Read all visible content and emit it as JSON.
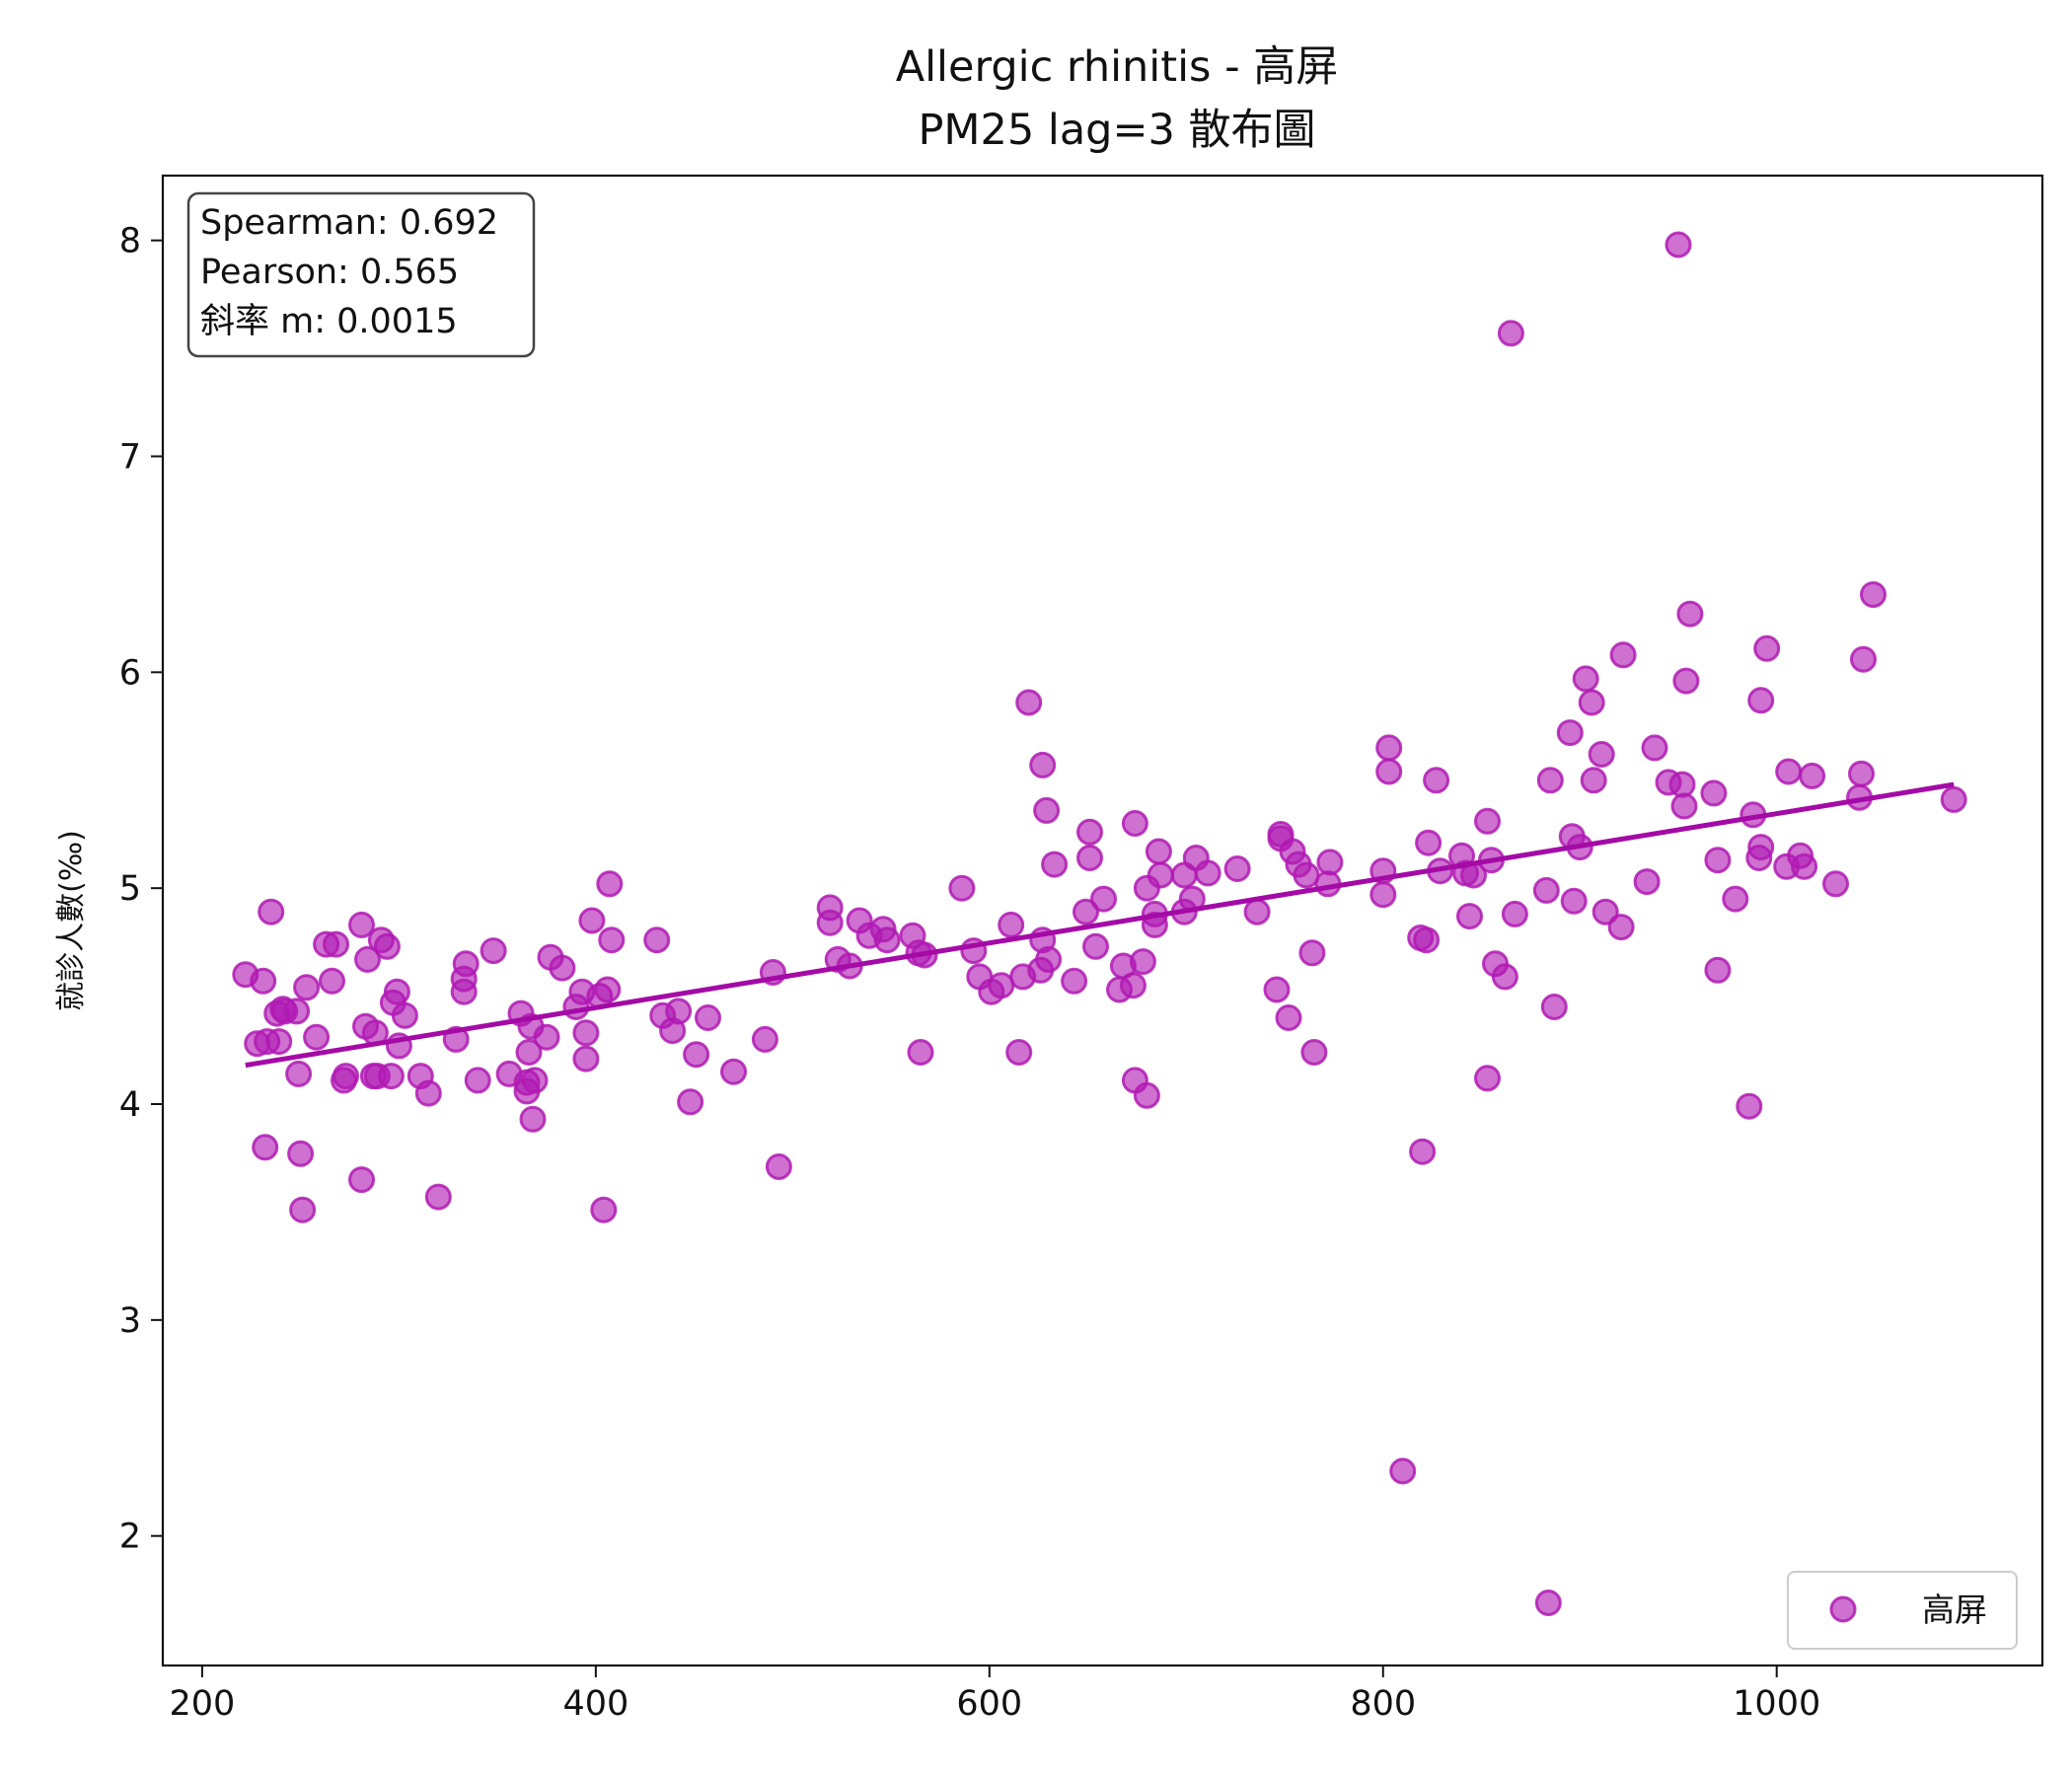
{
  "chart_data": {
    "type": "scatter",
    "title_line1": "Allergic rhinitis - 高屏",
    "title_line2": "PM25 lag=3 散布圖",
    "xlabel": "",
    "ylabel": "就診人數(‰)",
    "xlim": [
      180,
      1135
    ],
    "ylim": [
      1.4,
      8.3
    ],
    "xticks": [
      200,
      400,
      600,
      800,
      1000
    ],
    "yticks": [
      2,
      3,
      4,
      5,
      6,
      7,
      8
    ],
    "grid": false,
    "legend_position": "bottom-right",
    "colors": {
      "points": "#b01ab3",
      "trendline": "#a40aa6"
    },
    "stats": {
      "spearman": "Spearman: 0.692",
      "pearson": "Pearson: 0.565",
      "slope": "斜率 m: 0.0015"
    },
    "trendline": {
      "x": [
        222,
        1090
      ],
      "y": [
        4.18,
        5.48
      ]
    },
    "series": [
      {
        "name": "高屏",
        "points": [
          [
            222,
            4.6
          ],
          [
            228,
            4.28
          ],
          [
            231,
            4.57
          ],
          [
            232,
            3.8
          ],
          [
            233,
            4.29
          ],
          [
            235,
            4.89
          ],
          [
            238,
            4.42
          ],
          [
            239,
            4.29
          ],
          [
            241,
            4.44
          ],
          [
            242,
            4.43
          ],
          [
            248,
            4.43
          ],
          [
            249,
            4.14
          ],
          [
            250,
            3.77
          ],
          [
            251,
            3.51
          ],
          [
            253,
            4.54
          ],
          [
            258,
            4.31
          ],
          [
            263,
            4.74
          ],
          [
            266,
            4.57
          ],
          [
            268,
            4.74
          ],
          [
            272,
            4.11
          ],
          [
            273,
            4.13
          ],
          [
            281,
            4.83
          ],
          [
            281,
            3.65
          ],
          [
            283,
            4.36
          ],
          [
            284,
            4.67
          ],
          [
            287,
            4.13
          ],
          [
            288,
            4.33
          ],
          [
            289,
            4.13
          ],
          [
            291,
            4.76
          ],
          [
            294,
            4.73
          ],
          [
            296,
            4.13
          ],
          [
            297,
            4.47
          ],
          [
            299,
            4.52
          ],
          [
            300,
            4.27
          ],
          [
            303,
            4.41
          ],
          [
            311,
            4.13
          ],
          [
            315,
            4.05
          ],
          [
            320,
            3.57
          ],
          [
            329,
            4.3
          ],
          [
            333,
            4.52
          ],
          [
            333,
            4.58
          ],
          [
            334,
            4.65
          ],
          [
            340,
            4.11
          ],
          [
            348,
            4.71
          ],
          [
            356,
            4.14
          ],
          [
            362,
            4.42
          ],
          [
            365,
            4.06
          ],
          [
            365,
            4.1
          ],
          [
            366,
            4.24
          ],
          [
            367,
            4.36
          ],
          [
            368,
            3.93
          ],
          [
            369,
            4.11
          ],
          [
            375,
            4.31
          ],
          [
            377,
            4.68
          ],
          [
            383,
            4.63
          ],
          [
            390,
            4.45
          ],
          [
            393,
            4.52
          ],
          [
            395,
            4.21
          ],
          [
            395,
            4.33
          ],
          [
            398,
            4.85
          ],
          [
            402,
            4.5
          ],
          [
            404,
            3.51
          ],
          [
            406,
            4.53
          ],
          [
            407,
            5.02
          ],
          [
            408,
            4.76
          ],
          [
            431,
            4.76
          ],
          [
            434,
            4.41
          ],
          [
            439,
            4.34
          ],
          [
            442,
            4.43
          ],
          [
            448,
            4.01
          ],
          [
            451,
            4.23
          ],
          [
            457,
            4.4
          ],
          [
            470,
            4.15
          ],
          [
            486,
            4.3
          ],
          [
            490,
            4.61
          ],
          [
            493,
            3.71
          ],
          [
            519,
            4.91
          ],
          [
            519,
            4.84
          ],
          [
            523,
            4.67
          ],
          [
            529,
            4.64
          ],
          [
            534,
            4.85
          ],
          [
            539,
            4.78
          ],
          [
            546,
            4.81
          ],
          [
            548,
            4.76
          ],
          [
            561,
            4.78
          ],
          [
            564,
            4.7
          ],
          [
            565,
            4.24
          ],
          [
            567,
            4.69
          ],
          [
            586,
            5.0
          ],
          [
            592,
            4.71
          ],
          [
            595,
            4.59
          ],
          [
            601,
            4.52
          ],
          [
            606,
            4.55
          ],
          [
            611,
            4.83
          ],
          [
            615,
            4.24
          ],
          [
            617,
            4.59
          ],
          [
            620,
            5.86
          ],
          [
            626,
            4.62
          ],
          [
            627,
            5.57
          ],
          [
            627,
            4.76
          ],
          [
            629,
            5.36
          ],
          [
            630,
            4.67
          ],
          [
            633,
            5.11
          ],
          [
            643,
            4.57
          ],
          [
            649,
            4.89
          ],
          [
            651,
            5.14
          ],
          [
            651,
            5.26
          ],
          [
            654,
            4.73
          ],
          [
            658,
            4.95
          ],
          [
            666,
            4.53
          ],
          [
            668,
            4.64
          ],
          [
            673,
            4.55
          ],
          [
            674,
            5.3
          ],
          [
            674,
            4.11
          ],
          [
            678,
            4.66
          ],
          [
            680,
            5.0
          ],
          [
            680,
            4.04
          ],
          [
            684,
            4.88
          ],
          [
            684,
            4.83
          ],
          [
            686,
            5.17
          ],
          [
            687,
            5.06
          ],
          [
            699,
            5.06
          ],
          [
            699,
            4.89
          ],
          [
            703,
            4.95
          ],
          [
            705,
            5.14
          ],
          [
            711,
            5.07
          ],
          [
            726,
            5.09
          ],
          [
            736,
            4.89
          ],
          [
            746,
            4.53
          ],
          [
            748,
            5.25
          ],
          [
            748,
            5.23
          ],
          [
            752,
            4.4
          ],
          [
            754,
            5.17
          ],
          [
            757,
            5.11
          ],
          [
            761,
            5.06
          ],
          [
            764,
            4.7
          ],
          [
            765,
            4.24
          ],
          [
            772,
            5.02
          ],
          [
            773,
            5.12
          ],
          [
            800,
            5.08
          ],
          [
            800,
            4.97
          ],
          [
            803,
            5.65
          ],
          [
            803,
            5.54
          ],
          [
            810,
            2.3
          ],
          [
            819,
            4.77
          ],
          [
            820,
            3.78
          ],
          [
            822,
            4.76
          ],
          [
            823,
            5.21
          ],
          [
            827,
            5.5
          ],
          [
            829,
            5.08
          ],
          [
            840,
            5.15
          ],
          [
            842,
            5.07
          ],
          [
            844,
            4.87
          ],
          [
            846,
            5.06
          ],
          [
            853,
            5.31
          ],
          [
            853,
            4.12
          ],
          [
            855,
            5.13
          ],
          [
            857,
            4.65
          ],
          [
            862,
            4.59
          ],
          [
            865,
            7.57
          ],
          [
            867,
            4.88
          ],
          [
            883,
            4.99
          ],
          [
            884,
            1.69
          ],
          [
            885,
            5.5
          ],
          [
            887,
            4.45
          ],
          [
            895,
            5.72
          ],
          [
            896,
            5.24
          ],
          [
            897,
            4.94
          ],
          [
            900,
            5.19
          ],
          [
            903,
            5.97
          ],
          [
            906,
            5.86
          ],
          [
            907,
            5.5
          ],
          [
            911,
            5.62
          ],
          [
            913,
            4.89
          ],
          [
            921,
            4.82
          ],
          [
            922,
            6.08
          ],
          [
            934,
            5.03
          ],
          [
            938,
            5.65
          ],
          [
            945,
            5.49
          ],
          [
            950,
            7.98
          ],
          [
            952,
            5.48
          ],
          [
            953,
            5.38
          ],
          [
            954,
            5.96
          ],
          [
            956,
            6.27
          ],
          [
            968,
            5.44
          ],
          [
            970,
            4.62
          ],
          [
            970,
            5.13
          ],
          [
            979,
            4.95
          ],
          [
            986,
            3.99
          ],
          [
            988,
            5.34
          ],
          [
            991,
            5.14
          ],
          [
            992,
            5.87
          ],
          [
            992,
            5.19
          ],
          [
            995,
            6.11
          ],
          [
            1005,
            5.1
          ],
          [
            1006,
            5.54
          ],
          [
            1012,
            5.15
          ],
          [
            1014,
            5.1
          ],
          [
            1018,
            5.52
          ],
          [
            1030,
            5.02
          ],
          [
            1042,
            5.42
          ],
          [
            1043,
            5.53
          ],
          [
            1044,
            6.06
          ],
          [
            1049,
            6.36
          ],
          [
            1090,
            5.41
          ]
        ]
      }
    ]
  }
}
